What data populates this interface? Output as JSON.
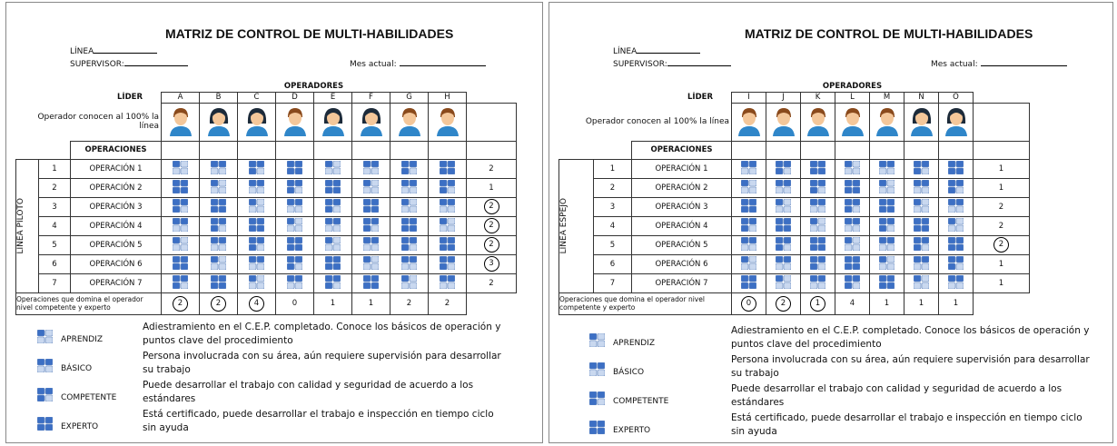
{
  "panels": [
    {
      "title": "MATRIZ DE CONTROL DE MULTI-HABILIDADES",
      "linea_label": "LÍNEA",
      "supervisor_label": "SUPERVISOR:",
      "mes_label": "Mes actual:",
      "lider_label": "LÍDER",
      "operadores_label": "OPERADORES",
      "operators": [
        "A",
        "B",
        "C",
        "D",
        "E",
        "F",
        "G",
        "H"
      ],
      "conocen_label": "Operador conocen al 100% la línea",
      "operaciones_label": "OPERACIONES",
      "side_label": "LÍNEA PILOTO",
      "rows": [
        {
          "num": 1,
          "name": "OPERACIÓN 1",
          "total": 2
        },
        {
          "num": 2,
          "name": "OPERACIÓN 2",
          "total": 1
        },
        {
          "num": 3,
          "name": "OPERACIÓN 3",
          "total": 2
        },
        {
          "num": 4,
          "name": "OPERACIÓN 4",
          "total": 2
        },
        {
          "num": 5,
          "name": "OPERACIÓN 5",
          "total": 2
        },
        {
          "num": 6,
          "name": "OPERACIÓN 6",
          "total": 3
        },
        {
          "num": 7,
          "name": "OPERACIÓN 7",
          "total": 2
        }
      ],
      "footer_label": "Operaciones que domina el operador nivel competente y experto",
      "footer_values": [
        2,
        2,
        4,
        0,
        1,
        1,
        2,
        2
      ],
      "legend": [
        {
          "name": "APRENDIZ",
          "description": "Adiestramiento en el C.E.P. completado. Conoce los básicos de operación y puntos clave del procedimiento"
        },
        {
          "name": "BÁSICO",
          "description": "Persona involucrada con su área, aún requiere supervisión para desarrollar su trabajo"
        },
        {
          "name": "COMPETENTE",
          "description": "Puede desarrollar el trabajo con calidad y seguridad de acuerdo a los estándares"
        },
        {
          "name": "EXPERTO",
          "description": "Está certificado, puede desarrollar el trabajo e inspección en tiempo ciclo sin ayuda"
        }
      ]
    },
    {
      "title": "MATRIZ DE CONTROL DE MULTI-HABILIDADES",
      "linea_label": "LÍNEA",
      "supervisor_label": "SUPERVISOR:",
      "mes_label": "Mes actual:",
      "lider_label": "LÍDER",
      "operadores_label": "OPERADORES",
      "operators": [
        "I",
        "J",
        "K",
        "L",
        "M",
        "N",
        "O"
      ],
      "conocen_label": "Operador conocen al 100% la línea",
      "operaciones_label": "OPERACIONES",
      "side_label": "LÍNEA ESPEJO",
      "rows": [
        {
          "num": 1,
          "name": "OPERACIÓN 1",
          "total": 1
        },
        {
          "num": 2,
          "name": "OPERACIÓN 2",
          "total": 1
        },
        {
          "num": 3,
          "name": "OPERACIÓN 3",
          "total": 2
        },
        {
          "num": 4,
          "name": "OPERACIÓN 4",
          "total": 2
        },
        {
          "num": 5,
          "name": "OPERACIÓN 5",
          "total": 2
        },
        {
          "num": 6,
          "name": "OPERACIÓN 6",
          "total": 1
        },
        {
          "num": 7,
          "name": "OPERACIÓN 7",
          "total": 1
        }
      ],
      "footer_label": "Operaciones que domina el operador nivel competente y experto",
      "footer_values": [
        0,
        2,
        1,
        4,
        1,
        1,
        1
      ],
      "legend": [
        {
          "name": "APRENDIZ",
          "description": "Adiestramiento en el C.E.P. completado. Conoce los básicos de operación y puntos clave del procedimiento"
        },
        {
          "name": "BÁSICO",
          "description": "Persona involucrada con su área, aún requiere supervisión para desarrollar su trabajo"
        },
        {
          "name": "COMPETENTE",
          "description": "Puede desarrollar el trabajo con calidad y seguridad de acuerdo a los estándares"
        },
        {
          "name": "EXPERTO",
          "description": "Está certificado, puede desarrollar el trabajo e inspección en tiempo ciclo sin ayuda"
        }
      ]
    }
  ]
}
